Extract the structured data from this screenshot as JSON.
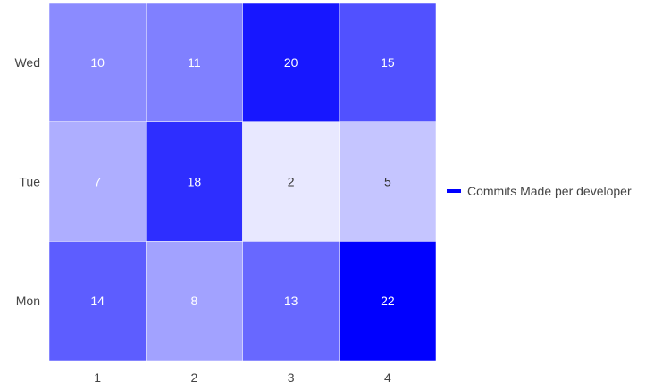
{
  "chart_data": {
    "type": "heatmap",
    "x_categories": [
      "1",
      "2",
      "3",
      "4"
    ],
    "y_categories": [
      "Mon",
      "Tue",
      "Wed"
    ],
    "series": [
      {
        "name": "Commits Made per developer",
        "values": [
          [
            14,
            8,
            13,
            22
          ],
          [
            7,
            18,
            2,
            5
          ],
          [
            10,
            11,
            20,
            15
          ]
        ]
      }
    ],
    "color_scale": {
      "min_color": "#ffffff",
      "max_color": "#0000ff",
      "min": 0,
      "max": 22
    },
    "legend_position": "right",
    "label_color_dark": "#333333",
    "label_color_light": "#ffffff"
  }
}
